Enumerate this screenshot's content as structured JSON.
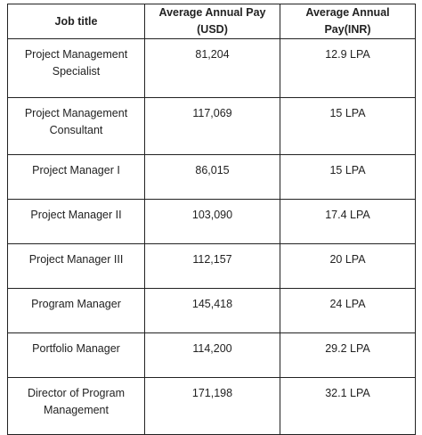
{
  "table": {
    "headers": [
      "Job title",
      "Average Annual Pay (USD)",
      "Average Annual Pay(INR)"
    ],
    "rows": [
      [
        "Project Management Specialist",
        "81,204",
        "12.9 LPA"
      ],
      [
        "Project Management Consultant",
        "117,069",
        "15 LPA"
      ],
      [
        "Project Manager I",
        "86,015",
        "15 LPA"
      ],
      [
        "Project Manager II",
        "103,090",
        "17.4 LPA"
      ],
      [
        "Project Manager III",
        "112,157",
        "20 LPA"
      ],
      [
        "Program Manager",
        "145,418",
        "24 LPA"
      ],
      [
        "Portfolio Manager",
        "114,200",
        "29.2  LPA"
      ],
      [
        "Director of Program Management",
        "171,198",
        "32.1 LPA"
      ]
    ]
  }
}
